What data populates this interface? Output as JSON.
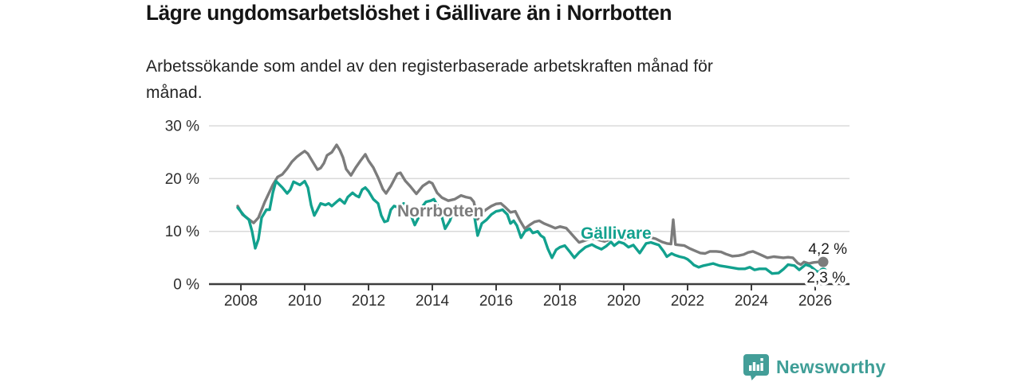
{
  "header": {
    "title": "Lägre ungdomsarbetslöshet i Gällivare än i Norrbotten",
    "subtitle_lines": [
      "Arbetssökande som andel av den registerbaserade arbetskraften månad för",
      "månad."
    ]
  },
  "chart_data": {
    "type": "line",
    "title": "Lägre ungdomsarbetslöshet i Gällivare än i Norrbotten",
    "subtitle": "Arbetssökande som andel av den registerbaserade arbetskraften månad för månad.",
    "unit": "percent of registered labour force",
    "grid": "horizontal",
    "legend_position": "inline-labels",
    "xlim": [
      2007.4,
      2027.1
    ],
    "ylim": [
      0,
      31
    ],
    "x_ticks": [
      2008,
      2010,
      2012,
      2014,
      2016,
      2018,
      2020,
      2022,
      2024,
      2026
    ],
    "x_tick_labels": [
      "2008",
      "2010",
      "2012",
      "2014",
      "2016",
      "2018",
      "2020",
      "2022",
      "2024",
      "2026"
    ],
    "y_ticks": [
      0,
      10,
      20,
      30
    ],
    "y_tick_labels": [
      "0 %",
      "10 %",
      "20 %",
      "30 %"
    ],
    "colors": {
      "gallivare": "#12a18e",
      "norrbotten": "#7c7c7c",
      "grid": "#d9d9d9",
      "axis": "#3d3d3d",
      "tick_text": "#2e2e2e",
      "end_label_text": "#1c1c1c"
    },
    "series": [
      {
        "name": "Norrbotten",
        "color": "#7c7c7c",
        "end_label": "4,2 %",
        "end_value": 4.2,
        "points": [
          [
            2007.9,
            14.8
          ],
          [
            2008.05,
            13.2
          ],
          [
            2008.2,
            12.5
          ],
          [
            2008.4,
            11.6
          ],
          [
            2008.55,
            12.6
          ],
          [
            2008.75,
            15.6
          ],
          [
            2009.0,
            18.8
          ],
          [
            2009.15,
            20.3
          ],
          [
            2009.3,
            20.8
          ],
          [
            2009.45,
            21.9
          ],
          [
            2009.6,
            23.2
          ],
          [
            2009.75,
            24.1
          ],
          [
            2009.9,
            24.8
          ],
          [
            2010.0,
            25.2
          ],
          [
            2010.1,
            24.7
          ],
          [
            2010.25,
            23.2
          ],
          [
            2010.4,
            21.7
          ],
          [
            2010.5,
            22.0
          ],
          [
            2010.6,
            22.9
          ],
          [
            2010.7,
            24.4
          ],
          [
            2010.85,
            25.0
          ],
          [
            2011.0,
            26.4
          ],
          [
            2011.1,
            25.4
          ],
          [
            2011.2,
            24.0
          ],
          [
            2011.3,
            21.8
          ],
          [
            2011.45,
            20.6
          ],
          [
            2011.6,
            22.1
          ],
          [
            2011.75,
            23.4
          ],
          [
            2011.9,
            24.6
          ],
          [
            2012.0,
            23.4
          ],
          [
            2012.15,
            22.1
          ],
          [
            2012.3,
            20.2
          ],
          [
            2012.45,
            18.0
          ],
          [
            2012.55,
            17.2
          ],
          [
            2012.7,
            18.6
          ],
          [
            2012.9,
            20.9
          ],
          [
            2013.0,
            21.1
          ],
          [
            2013.15,
            19.6
          ],
          [
            2013.3,
            18.6
          ],
          [
            2013.5,
            17.1
          ],
          [
            2013.7,
            18.6
          ],
          [
            2013.9,
            19.4
          ],
          [
            2014.0,
            19.1
          ],
          [
            2014.15,
            17.3
          ],
          [
            2014.3,
            16.4
          ],
          [
            2014.5,
            15.8
          ],
          [
            2014.7,
            16.1
          ],
          [
            2014.9,
            16.8
          ],
          [
            2015.05,
            16.5
          ],
          [
            2015.2,
            16.3
          ],
          [
            2015.3,
            15.6
          ],
          [
            2015.42,
            12.3
          ],
          [
            2015.55,
            13.5
          ],
          [
            2015.7,
            14.2
          ],
          [
            2015.85,
            14.8
          ],
          [
            2016.0,
            15.2
          ],
          [
            2016.15,
            15.3
          ],
          [
            2016.3,
            14.5
          ],
          [
            2016.45,
            13.6
          ],
          [
            2016.6,
            13.8
          ],
          [
            2016.75,
            12.0
          ],
          [
            2016.9,
            10.5
          ],
          [
            2017.05,
            11.2
          ],
          [
            2017.2,
            11.8
          ],
          [
            2017.35,
            12.0
          ],
          [
            2017.5,
            11.5
          ],
          [
            2017.7,
            11.0
          ],
          [
            2017.85,
            10.6
          ],
          [
            2018.0,
            10.9
          ],
          [
            2018.2,
            10.6
          ],
          [
            2018.45,
            8.9
          ],
          [
            2018.6,
            7.9
          ],
          [
            2018.8,
            8.3
          ],
          [
            2019.0,
            8.7
          ],
          [
            2019.2,
            8.4
          ],
          [
            2019.4,
            8.1
          ],
          [
            2019.6,
            8.5
          ],
          [
            2019.8,
            8.8
          ],
          [
            2020.0,
            8.5
          ],
          [
            2020.2,
            9.0
          ],
          [
            2020.4,
            9.2
          ],
          [
            2020.6,
            9.1
          ],
          [
            2020.8,
            8.9
          ],
          [
            2021.0,
            8.6
          ],
          [
            2021.2,
            8.0
          ],
          [
            2021.35,
            7.7
          ],
          [
            2021.48,
            7.6
          ],
          [
            2021.55,
            12.2
          ],
          [
            2021.62,
            7.5
          ],
          [
            2021.75,
            7.4
          ],
          [
            2021.9,
            7.3
          ],
          [
            2022.05,
            6.8
          ],
          [
            2022.2,
            6.4
          ],
          [
            2022.4,
            5.9
          ],
          [
            2022.55,
            5.8
          ],
          [
            2022.7,
            6.2
          ],
          [
            2022.9,
            6.2
          ],
          [
            2023.05,
            6.1
          ],
          [
            2023.2,
            5.7
          ],
          [
            2023.4,
            5.3
          ],
          [
            2023.6,
            5.4
          ],
          [
            2023.75,
            5.6
          ],
          [
            2023.9,
            6.0
          ],
          [
            2024.05,
            6.2
          ],
          [
            2024.2,
            5.8
          ],
          [
            2024.35,
            5.4
          ],
          [
            2024.5,
            5.0
          ],
          [
            2024.7,
            5.2
          ],
          [
            2024.85,
            5.1
          ],
          [
            2025.0,
            5.0
          ],
          [
            2025.15,
            5.1
          ],
          [
            2025.3,
            5.0
          ],
          [
            2025.45,
            4.0
          ],
          [
            2025.55,
            3.7
          ],
          [
            2025.65,
            4.2
          ],
          [
            2025.8,
            3.9
          ],
          [
            2025.95,
            4.1
          ],
          [
            2026.1,
            4.2
          ],
          [
            2026.25,
            4.2
          ]
        ]
      },
      {
        "name": "Gällivare",
        "color": "#12a18e",
        "end_label": "2,3 %",
        "end_value": 2.3,
        "points": [
          [
            2007.9,
            14.5
          ],
          [
            2008.1,
            13.0
          ],
          [
            2008.25,
            12.2
          ],
          [
            2008.35,
            10.0
          ],
          [
            2008.45,
            6.8
          ],
          [
            2008.55,
            8.5
          ],
          [
            2008.65,
            12.6
          ],
          [
            2008.8,
            14.1
          ],
          [
            2008.9,
            14.1
          ],
          [
            2009.0,
            17.3
          ],
          [
            2009.1,
            19.5
          ],
          [
            2009.2,
            18.9
          ],
          [
            2009.3,
            18.3
          ],
          [
            2009.45,
            17.2
          ],
          [
            2009.55,
            17.9
          ],
          [
            2009.65,
            19.4
          ],
          [
            2009.75,
            19.1
          ],
          [
            2009.85,
            18.8
          ],
          [
            2010.0,
            19.5
          ],
          [
            2010.1,
            18.3
          ],
          [
            2010.2,
            15.0
          ],
          [
            2010.3,
            13.0
          ],
          [
            2010.4,
            14.1
          ],
          [
            2010.5,
            15.3
          ],
          [
            2010.65,
            15.0
          ],
          [
            2010.75,
            15.3
          ],
          [
            2010.85,
            14.8
          ],
          [
            2011.0,
            15.6
          ],
          [
            2011.1,
            16.1
          ],
          [
            2011.25,
            15.3
          ],
          [
            2011.35,
            16.5
          ],
          [
            2011.5,
            17.3
          ],
          [
            2011.6,
            16.8
          ],
          [
            2011.7,
            16.5
          ],
          [
            2011.8,
            17.9
          ],
          [
            2011.9,
            18.3
          ],
          [
            2012.0,
            17.6
          ],
          [
            2012.15,
            16.1
          ],
          [
            2012.3,
            15.3
          ],
          [
            2012.4,
            13.0
          ],
          [
            2012.5,
            11.8
          ],
          [
            2012.6,
            12.0
          ],
          [
            2012.7,
            14.1
          ],
          [
            2012.8,
            14.8
          ],
          [
            2012.95,
            14.5
          ],
          [
            2013.1,
            15.3
          ],
          [
            2013.2,
            14.8
          ],
          [
            2013.3,
            13.5
          ],
          [
            2013.45,
            11.2
          ],
          [
            2013.6,
            13.0
          ],
          [
            2013.7,
            14.8
          ],
          [
            2013.8,
            15.6
          ],
          [
            2013.95,
            15.8
          ],
          [
            2014.05,
            16.1
          ],
          [
            2014.2,
            14.5
          ],
          [
            2014.3,
            12.7
          ],
          [
            2014.4,
            10.5
          ],
          [
            2014.55,
            12.0
          ],
          [
            2014.65,
            13.8
          ],
          [
            2014.8,
            14.1
          ],
          [
            2014.9,
            13.5
          ],
          [
            2015.05,
            14.1
          ],
          [
            2015.2,
            14.2
          ],
          [
            2015.3,
            13.5
          ],
          [
            2015.42,
            9.2
          ],
          [
            2015.55,
            11.5
          ],
          [
            2015.7,
            12.2
          ],
          [
            2015.85,
            13.2
          ],
          [
            2016.0,
            13.8
          ],
          [
            2016.1,
            13.9
          ],
          [
            2016.2,
            14.1
          ],
          [
            2016.35,
            13.2
          ],
          [
            2016.45,
            11.5
          ],
          [
            2016.55,
            12.0
          ],
          [
            2016.65,
            11.1
          ],
          [
            2016.78,
            8.8
          ],
          [
            2016.9,
            10.0
          ],
          [
            2017.05,
            10.5
          ],
          [
            2017.15,
            9.7
          ],
          [
            2017.3,
            10.0
          ],
          [
            2017.4,
            9.2
          ],
          [
            2017.5,
            8.8
          ],
          [
            2017.62,
            6.7
          ],
          [
            2017.75,
            5.0
          ],
          [
            2017.88,
            6.5
          ],
          [
            2018.0,
            7.0
          ],
          [
            2018.15,
            7.3
          ],
          [
            2018.3,
            6.2
          ],
          [
            2018.45,
            5.0
          ],
          [
            2018.6,
            6.0
          ],
          [
            2018.8,
            7.0
          ],
          [
            2019.0,
            7.5
          ],
          [
            2019.15,
            7.0
          ],
          [
            2019.3,
            6.6
          ],
          [
            2019.45,
            7.2
          ],
          [
            2019.6,
            8.0
          ],
          [
            2019.7,
            7.3
          ],
          [
            2019.85,
            8.0
          ],
          [
            2020.0,
            7.7
          ],
          [
            2020.15,
            7.0
          ],
          [
            2020.3,
            7.4
          ],
          [
            2020.5,
            5.9
          ],
          [
            2020.7,
            7.7
          ],
          [
            2020.85,
            7.9
          ],
          [
            2021.0,
            7.6
          ],
          [
            2021.1,
            7.4
          ],
          [
            2021.25,
            6.2
          ],
          [
            2021.35,
            5.2
          ],
          [
            2021.5,
            5.8
          ],
          [
            2021.6,
            5.5
          ],
          [
            2021.75,
            5.2
          ],
          [
            2021.9,
            5.0
          ],
          [
            2022.0,
            4.7
          ],
          [
            2022.1,
            4.2
          ],
          [
            2022.2,
            3.6
          ],
          [
            2022.35,
            3.2
          ],
          [
            2022.5,
            3.5
          ],
          [
            2022.65,
            3.7
          ],
          [
            2022.8,
            3.9
          ],
          [
            2023.0,
            3.5
          ],
          [
            2023.2,
            3.3
          ],
          [
            2023.4,
            3.1
          ],
          [
            2023.6,
            2.9
          ],
          [
            2023.8,
            2.9
          ],
          [
            2023.95,
            3.2
          ],
          [
            2024.1,
            2.7
          ],
          [
            2024.25,
            2.9
          ],
          [
            2024.45,
            2.9
          ],
          [
            2024.65,
            2.0
          ],
          [
            2024.85,
            2.1
          ],
          [
            2025.0,
            2.8
          ],
          [
            2025.15,
            3.7
          ],
          [
            2025.35,
            3.5
          ],
          [
            2025.5,
            2.7
          ],
          [
            2025.7,
            3.7
          ],
          [
            2025.85,
            3.4
          ],
          [
            2026.05,
            2.4
          ],
          [
            2026.25,
            2.3
          ]
        ]
      }
    ]
  },
  "footer": {
    "brand": "Newsworthy",
    "brand_color": "#3f9e97",
    "brand_icon": "newsworthy-badge-icon"
  }
}
